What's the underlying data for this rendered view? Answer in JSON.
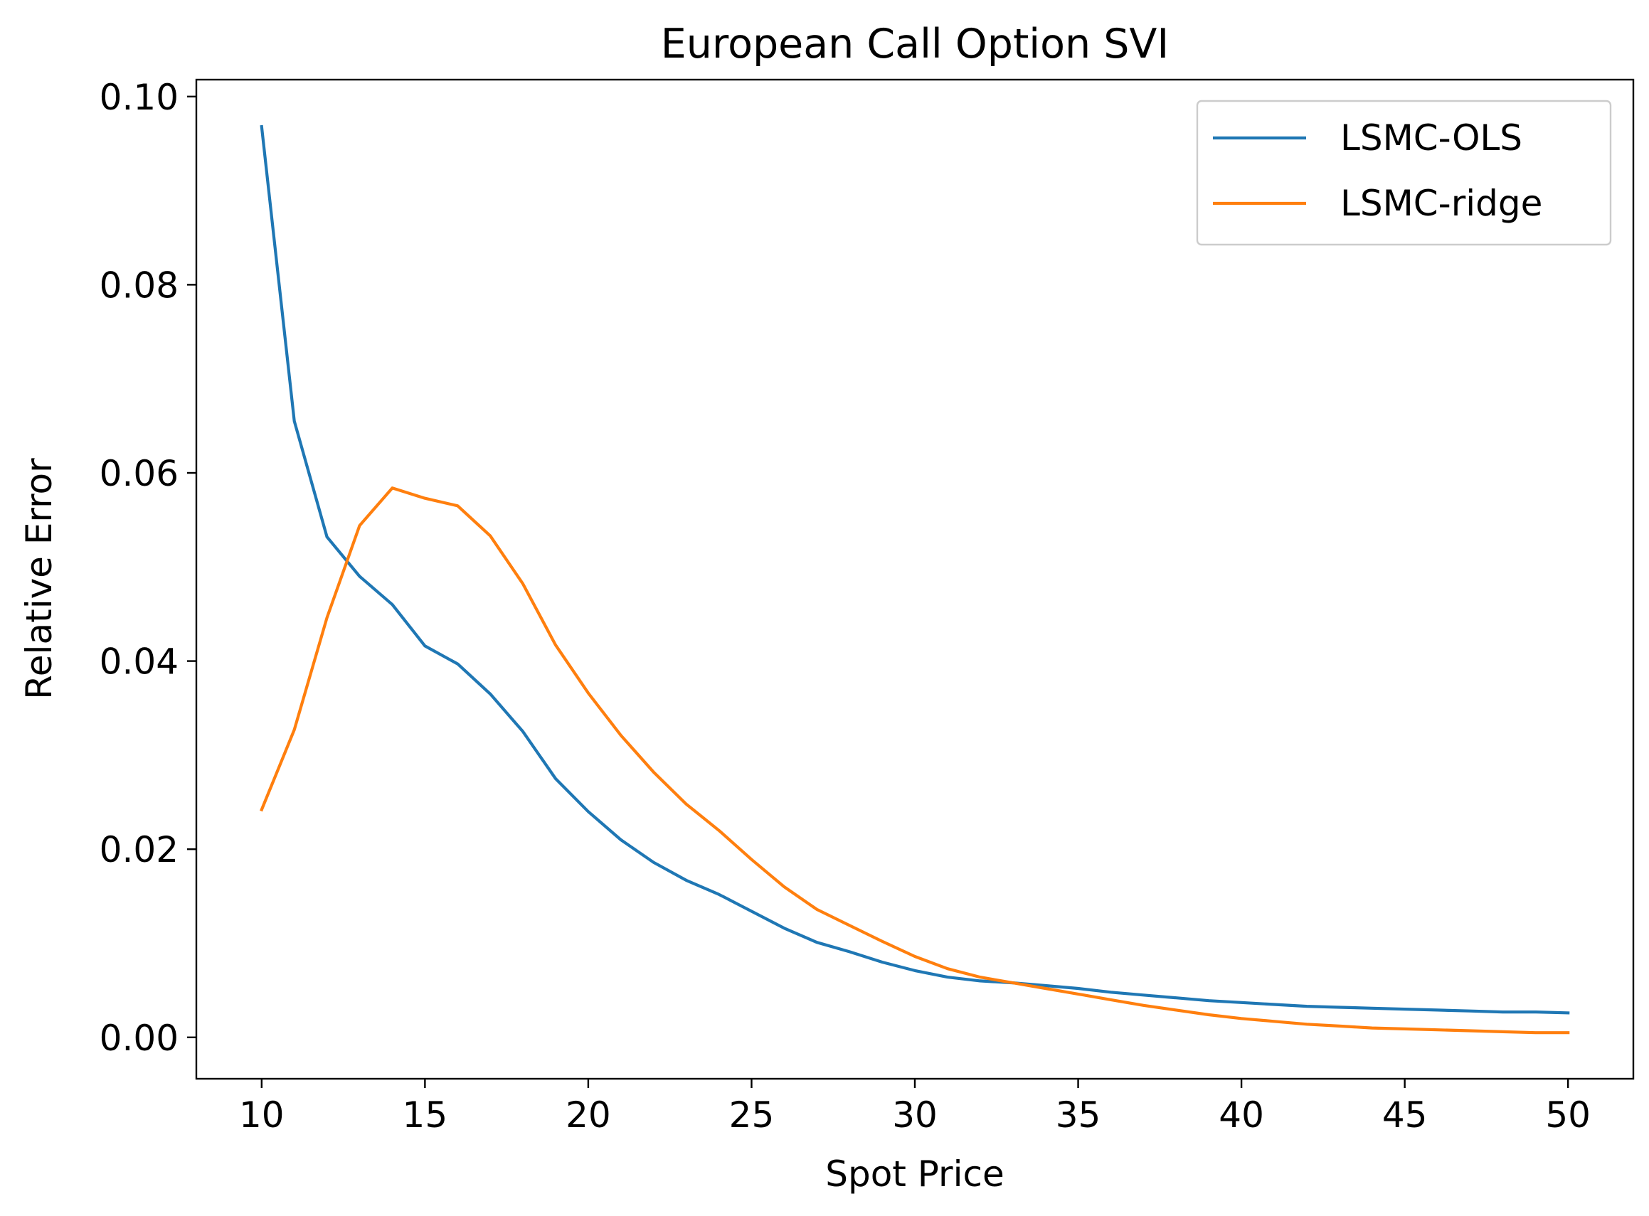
{
  "chart_data": {
    "type": "line",
    "title": "European Call Option SVI",
    "xlabel": "Spot Price",
    "ylabel": "Relative Error",
    "xlim": [
      8,
      52
    ],
    "ylim": [
      -0.0044,
      0.1018
    ],
    "x_ticks": [
      10,
      15,
      20,
      25,
      30,
      35,
      40,
      45,
      50
    ],
    "x_tick_labels": [
      "10",
      "15",
      "20",
      "25",
      "30",
      "35",
      "40",
      "45",
      "50"
    ],
    "y_ticks": [
      0.0,
      0.02,
      0.04,
      0.06,
      0.08,
      0.1
    ],
    "y_tick_labels": [
      "0.00",
      "0.02",
      "0.04",
      "0.06",
      "0.08",
      "0.10"
    ],
    "grid": false,
    "legend": {
      "position": "top-right"
    },
    "x": [
      10,
      11,
      12,
      13,
      14,
      15,
      16,
      17,
      18,
      19,
      20,
      21,
      22,
      23,
      24,
      25,
      26,
      27,
      28,
      29,
      30,
      31,
      32,
      33,
      34,
      35,
      36,
      37,
      38,
      39,
      40,
      41,
      42,
      43,
      44,
      45,
      46,
      47,
      48,
      49,
      50
    ],
    "series": [
      {
        "name": "LSMC-OLS",
        "color": "#1f77b4",
        "values": [
          0.0968,
          0.0655,
          0.0532,
          0.049,
          0.046,
          0.0416,
          0.0397,
          0.0365,
          0.0325,
          0.0275,
          0.024,
          0.021,
          0.0186,
          0.0167,
          0.0152,
          0.0134,
          0.0116,
          0.0101,
          0.0091,
          0.008,
          0.0071,
          0.0064,
          0.006,
          0.0058,
          0.0055,
          0.0052,
          0.0048,
          0.0045,
          0.0042,
          0.0039,
          0.0037,
          0.0035,
          0.0033,
          0.0032,
          0.0031,
          0.003,
          0.0029,
          0.0028,
          0.0027,
          0.0027,
          0.0026
        ]
      },
      {
        "name": "LSMC-ridge",
        "color": "#ff7f0e",
        "values": [
          0.0242,
          0.0327,
          0.0446,
          0.0544,
          0.0584,
          0.0573,
          0.0565,
          0.0533,
          0.0482,
          0.0417,
          0.0366,
          0.0321,
          0.0282,
          0.0248,
          0.022,
          0.0189,
          0.016,
          0.0136,
          0.0119,
          0.0102,
          0.0086,
          0.0073,
          0.0064,
          0.0058,
          0.0052,
          0.0046,
          0.004,
          0.0034,
          0.0029,
          0.0024,
          0.002,
          0.0017,
          0.0014,
          0.0012,
          0.001,
          0.0009,
          0.0008,
          0.0007,
          0.0006,
          0.0005,
          0.0005
        ]
      }
    ]
  }
}
